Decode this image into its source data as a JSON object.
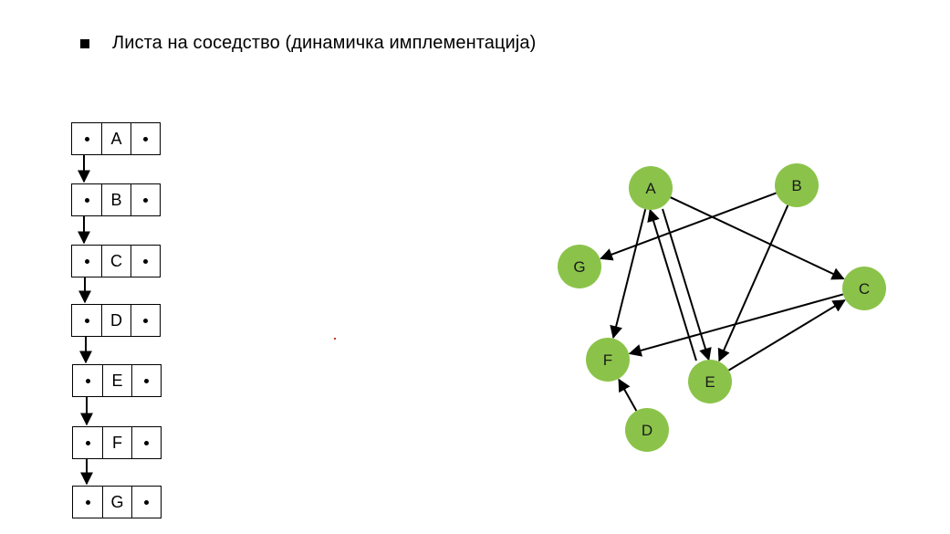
{
  "slide": {
    "heading": "Листа на соседство (динамичка имплементација)"
  },
  "linked_list": {
    "nodes": [
      "A",
      "B",
      "C",
      "D",
      "E",
      "F",
      "G"
    ]
  },
  "graph": {
    "node_color": "#8bc34a",
    "nodes": [
      {
        "id": "A",
        "label": "A"
      },
      {
        "id": "B",
        "label": "B"
      },
      {
        "id": "C",
        "label": "C"
      },
      {
        "id": "D",
        "label": "D"
      },
      {
        "id": "E",
        "label": "E"
      },
      {
        "id": "F",
        "label": "F"
      },
      {
        "id": "G",
        "label": "G"
      }
    ],
    "edges": [
      {
        "from": "A",
        "to": "C"
      },
      {
        "from": "A",
        "to": "F"
      },
      {
        "from": "A",
        "to": "E"
      },
      {
        "from": "E",
        "to": "A"
      },
      {
        "from": "B",
        "to": "G"
      },
      {
        "from": "B",
        "to": "E"
      },
      {
        "from": "C",
        "to": "F"
      },
      {
        "from": "E",
        "to": "C"
      },
      {
        "from": "D",
        "to": "F"
      }
    ]
  }
}
